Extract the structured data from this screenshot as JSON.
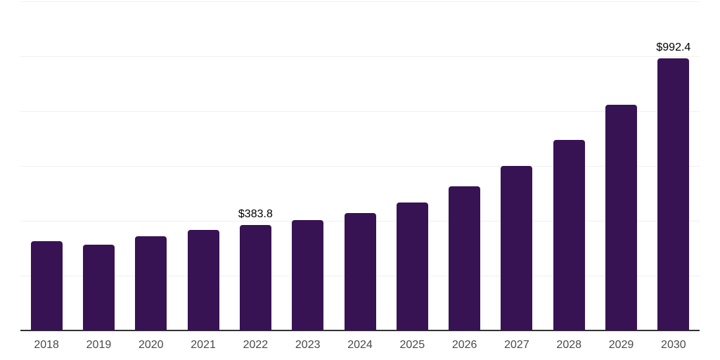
{
  "chart": {
    "background": "#ffffff",
    "bar_color": "#371353",
    "grid_color": "#f0f0f0",
    "axis_color": "#333333",
    "tick_label_color": "#4a4a4a",
    "data_label_color": "#000000"
  },
  "chart_data": {
    "type": "bar",
    "title": "",
    "xlabel": "",
    "ylabel": "",
    "categories": [
      "2018",
      "2019",
      "2020",
      "2021",
      "2022",
      "2023",
      "2024",
      "2025",
      "2026",
      "2027",
      "2028",
      "2029",
      "2030"
    ],
    "values": [
      325,
      314,
      343,
      366,
      383.8,
      402,
      427,
      467,
      525,
      599,
      696,
      824,
      992.4
    ],
    "data_labels": [
      "",
      "",
      "",
      "",
      "$383.8",
      "",
      "",
      "",
      "",
      "",
      "",
      "",
      "$992.4"
    ],
    "ylim": [
      0,
      1200
    ],
    "gridline_values": [
      200,
      400,
      600,
      800,
      1000,
      1200
    ],
    "grid": true,
    "y_tick_labels_visible": false,
    "legend_position": "none"
  }
}
